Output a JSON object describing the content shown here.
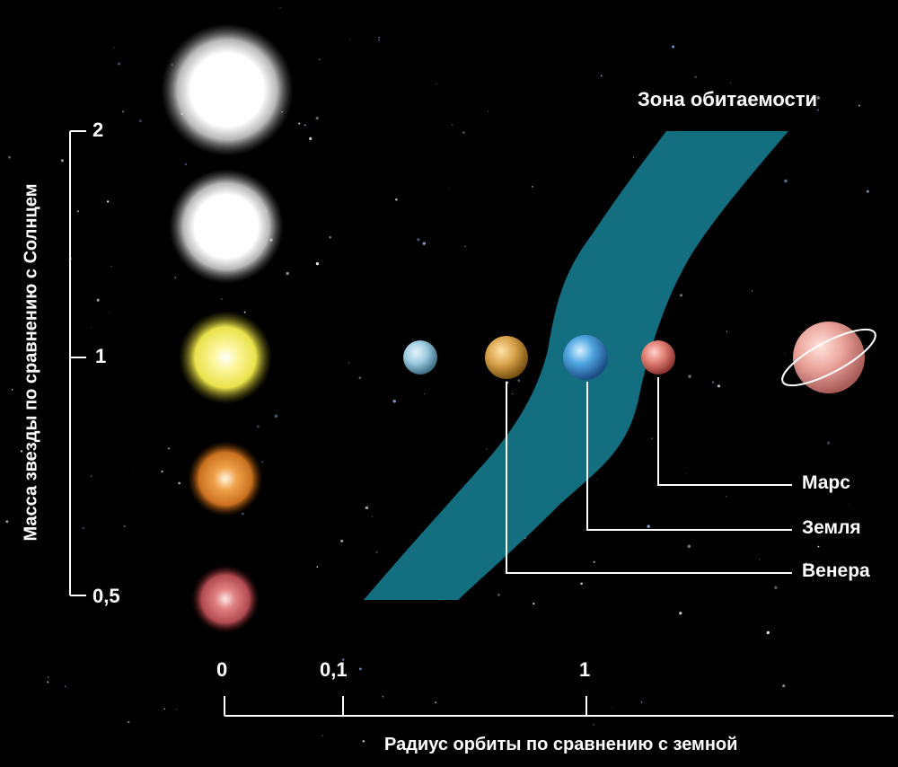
{
  "zone_label": "Зона обитаемости",
  "y_axis": {
    "label": "Масса звезды по сравнению с Солнцем",
    "ticks": [
      "2",
      "1",
      "0,5"
    ]
  },
  "x_axis": {
    "label": "Радиус орбиты по сравнению с земной",
    "ticks": [
      "0",
      "0,1",
      "1"
    ]
  },
  "planets": {
    "mars": "Марс",
    "earth": "Земля",
    "venus": "Венера"
  },
  "colors": {
    "background": "#000000",
    "habitable_zone": "#136f80",
    "text": "#ffffff"
  }
}
